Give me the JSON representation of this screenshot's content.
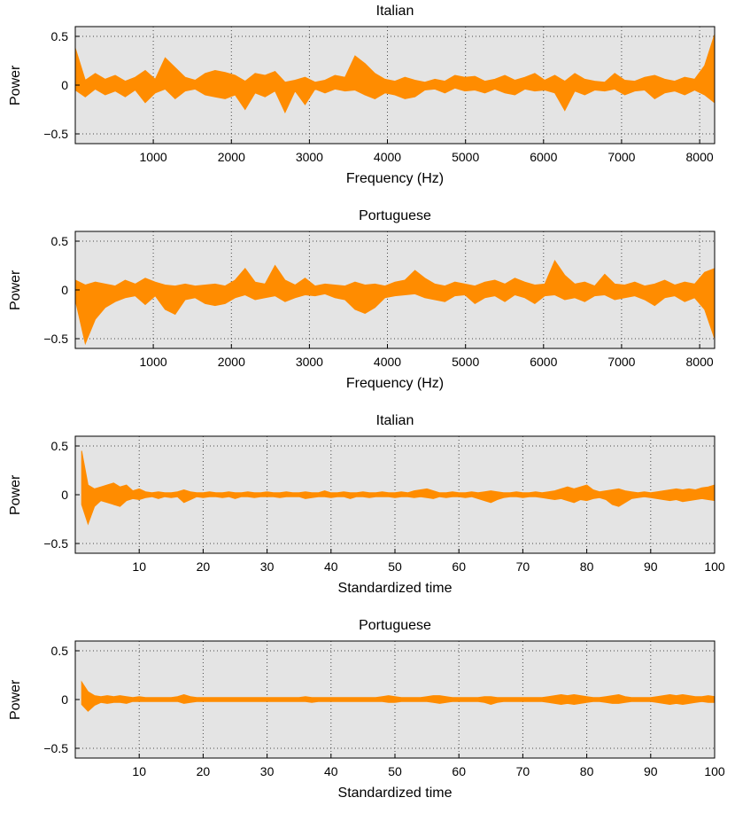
{
  "styles": {
    "plot_bg": "#e4e4e4",
    "area_color": "#ff8c00",
    "grid_color": "#4a4a4a",
    "axis_color": "#000000",
    "page_bg": "#ffffff"
  },
  "chart_data": [
    {
      "type": "area",
      "title": "Italian",
      "xlabel": "Frequency (Hz)",
      "ylabel": "Power",
      "xlim": [
        0,
        8192
      ],
      "ylim": [
        -0.6,
        0.6
      ],
      "xticks": [
        1000,
        2000,
        3000,
        4000,
        5000,
        6000,
        7000,
        8000
      ],
      "yticks": [
        -0.5,
        0,
        0.5
      ],
      "grid": true,
      "legend": "none",
      "x": [
        0,
        128,
        256,
        384,
        512,
        640,
        768,
        896,
        1024,
        1152,
        1280,
        1408,
        1536,
        1664,
        1792,
        1920,
        2048,
        2176,
        2304,
        2432,
        2560,
        2688,
        2816,
        2944,
        3072,
        3200,
        3328,
        3456,
        3584,
        3712,
        3840,
        3968,
        4096,
        4224,
        4352,
        4480,
        4608,
        4736,
        4864,
        4992,
        5120,
        5248,
        5376,
        5504,
        5632,
        5760,
        5888,
        6016,
        6144,
        6272,
        6400,
        6528,
        6656,
        6784,
        6912,
        7040,
        7168,
        7296,
        7424,
        7552,
        7680,
        7808,
        7936,
        8064,
        8192
      ],
      "upper": [
        0.38,
        0.05,
        0.12,
        0.06,
        0.1,
        0.04,
        0.08,
        0.15,
        0.06,
        0.28,
        0.18,
        0.08,
        0.05,
        0.12,
        0.15,
        0.13,
        0.1,
        0.04,
        0.12,
        0.1,
        0.14,
        0.03,
        0.05,
        0.08,
        0.03,
        0.05,
        0.1,
        0.08,
        0.3,
        0.22,
        0.12,
        0.06,
        0.04,
        0.08,
        0.05,
        0.03,
        0.06,
        0.04,
        0.1,
        0.08,
        0.09,
        0.04,
        0.06,
        0.1,
        0.05,
        0.08,
        0.12,
        0.05,
        0.1,
        0.04,
        0.12,
        0.06,
        0.04,
        0.03,
        0.12,
        0.05,
        0.04,
        0.08,
        0.1,
        0.06,
        0.04,
        0.08,
        0.06,
        0.2,
        0.52
      ],
      "lower": [
        -0.05,
        -0.12,
        -0.04,
        -0.1,
        -0.06,
        -0.12,
        -0.05,
        -0.18,
        -0.08,
        -0.04,
        -0.14,
        -0.06,
        -0.04,
        -0.1,
        -0.12,
        -0.14,
        -0.1,
        -0.25,
        -0.08,
        -0.12,
        -0.06,
        -0.28,
        -0.06,
        -0.2,
        -0.04,
        -0.08,
        -0.04,
        -0.06,
        -0.05,
        -0.1,
        -0.14,
        -0.08,
        -0.1,
        -0.14,
        -0.12,
        -0.05,
        -0.04,
        -0.08,
        -0.03,
        -0.06,
        -0.05,
        -0.08,
        -0.04,
        -0.08,
        -0.1,
        -0.04,
        -0.06,
        -0.05,
        -0.08,
        -0.26,
        -0.06,
        -0.1,
        -0.05,
        -0.06,
        -0.04,
        -0.1,
        -0.06,
        -0.05,
        -0.14,
        -0.08,
        -0.06,
        -0.1,
        -0.05,
        -0.1,
        -0.18
      ]
    },
    {
      "type": "area",
      "title": "Portuguese",
      "xlabel": "Frequency (Hz)",
      "ylabel": "Power",
      "xlim": [
        0,
        8192
      ],
      "ylim": [
        -0.6,
        0.6
      ],
      "xticks": [
        1000,
        2000,
        3000,
        4000,
        5000,
        6000,
        7000,
        8000
      ],
      "yticks": [
        -0.5,
        0,
        0.5
      ],
      "grid": true,
      "legend": "none",
      "x": [
        0,
        128,
        256,
        384,
        512,
        640,
        768,
        896,
        1024,
        1152,
        1280,
        1408,
        1536,
        1664,
        1792,
        1920,
        2048,
        2176,
        2304,
        2432,
        2560,
        2688,
        2816,
        2944,
        3072,
        3200,
        3328,
        3456,
        3584,
        3712,
        3840,
        3968,
        4096,
        4224,
        4352,
        4480,
        4608,
        4736,
        4864,
        4992,
        5120,
        5248,
        5376,
        5504,
        5632,
        5760,
        5888,
        6016,
        6144,
        6272,
        6400,
        6528,
        6656,
        6784,
        6912,
        7040,
        7168,
        7296,
        7424,
        7552,
        7680,
        7808,
        7936,
        8064,
        8192
      ],
      "upper": [
        0.1,
        0.05,
        0.08,
        0.06,
        0.04,
        0.1,
        0.06,
        0.12,
        0.08,
        0.05,
        0.04,
        0.06,
        0.04,
        0.05,
        0.06,
        0.04,
        0.1,
        0.22,
        0.08,
        0.06,
        0.25,
        0.1,
        0.05,
        0.12,
        0.04,
        0.06,
        0.05,
        0.04,
        0.08,
        0.05,
        0.06,
        0.04,
        0.08,
        0.1,
        0.2,
        0.12,
        0.06,
        0.04,
        0.08,
        0.06,
        0.04,
        0.08,
        0.1,
        0.06,
        0.12,
        0.08,
        0.05,
        0.06,
        0.3,
        0.15,
        0.06,
        0.08,
        0.04,
        0.16,
        0.06,
        0.05,
        0.08,
        0.04,
        0.06,
        0.1,
        0.05,
        0.08,
        0.06,
        0.18,
        0.22
      ],
      "lower": [
        -0.1,
        -0.55,
        -0.3,
        -0.18,
        -0.12,
        -0.08,
        -0.06,
        -0.15,
        -0.06,
        -0.2,
        -0.25,
        -0.1,
        -0.08,
        -0.14,
        -0.16,
        -0.14,
        -0.08,
        -0.05,
        -0.1,
        -0.08,
        -0.06,
        -0.12,
        -0.08,
        -0.05,
        -0.06,
        -0.04,
        -0.08,
        -0.1,
        -0.2,
        -0.24,
        -0.18,
        -0.08,
        -0.06,
        -0.05,
        -0.04,
        -0.08,
        -0.1,
        -0.12,
        -0.06,
        -0.05,
        -0.14,
        -0.08,
        -0.06,
        -0.12,
        -0.05,
        -0.08,
        -0.14,
        -0.06,
        -0.05,
        -0.1,
        -0.08,
        -0.12,
        -0.06,
        -0.05,
        -0.1,
        -0.08,
        -0.06,
        -0.1,
        -0.16,
        -0.08,
        -0.06,
        -0.12,
        -0.08,
        -0.2,
        -0.5
      ]
    },
    {
      "type": "area",
      "title": "Italian",
      "xlabel": "Standardized time",
      "ylabel": "Power",
      "xlim": [
        0,
        100
      ],
      "ylim": [
        -0.6,
        0.6
      ],
      "xticks": [
        10,
        20,
        30,
        40,
        50,
        60,
        70,
        80,
        90,
        100
      ],
      "yticks": [
        -0.5,
        0,
        0.5
      ],
      "grid": true,
      "legend": "none",
      "x": [
        1,
        2,
        3,
        4,
        5,
        6,
        7,
        8,
        9,
        10,
        11,
        12,
        13,
        14,
        15,
        16,
        17,
        18,
        19,
        20,
        21,
        22,
        23,
        24,
        25,
        26,
        27,
        28,
        29,
        30,
        31,
        32,
        33,
        34,
        35,
        36,
        37,
        38,
        39,
        40,
        41,
        42,
        43,
        44,
        45,
        46,
        47,
        48,
        49,
        50,
        51,
        52,
        53,
        54,
        55,
        56,
        57,
        58,
        59,
        60,
        61,
        62,
        63,
        64,
        65,
        66,
        67,
        68,
        69,
        70,
        71,
        72,
        73,
        74,
        75,
        76,
        77,
        78,
        79,
        80,
        81,
        82,
        83,
        84,
        85,
        86,
        87,
        88,
        89,
        90,
        91,
        92,
        93,
        94,
        95,
        96,
        97,
        98,
        99,
        100
      ],
      "upper": [
        0.45,
        0.1,
        0.06,
        0.08,
        0.1,
        0.12,
        0.08,
        0.1,
        0.04,
        0.06,
        0.03,
        0.02,
        0.03,
        0.02,
        0.02,
        0.03,
        0.05,
        0.03,
        0.02,
        0.02,
        0.03,
        0.02,
        0.02,
        0.03,
        0.02,
        0.02,
        0.03,
        0.02,
        0.02,
        0.03,
        0.02,
        0.02,
        0.03,
        0.02,
        0.02,
        0.03,
        0.02,
        0.02,
        0.04,
        0.02,
        0.02,
        0.03,
        0.02,
        0.02,
        0.03,
        0.02,
        0.02,
        0.03,
        0.02,
        0.02,
        0.03,
        0.02,
        0.04,
        0.05,
        0.06,
        0.04,
        0.02,
        0.02,
        0.03,
        0.02,
        0.02,
        0.03,
        0.02,
        0.03,
        0.04,
        0.03,
        0.02,
        0.02,
        0.03,
        0.02,
        0.02,
        0.03,
        0.02,
        0.03,
        0.04,
        0.06,
        0.08,
        0.06,
        0.08,
        0.1,
        0.05,
        0.03,
        0.04,
        0.05,
        0.06,
        0.04,
        0.03,
        0.02,
        0.03,
        0.02,
        0.03,
        0.04,
        0.05,
        0.06,
        0.05,
        0.06,
        0.05,
        0.07,
        0.08,
        0.1
      ],
      "lower": [
        -0.1,
        -0.3,
        -0.12,
        -0.06,
        -0.08,
        -0.1,
        -0.12,
        -0.06,
        -0.04,
        -0.05,
        -0.03,
        -0.02,
        -0.04,
        -0.02,
        -0.03,
        -0.02,
        -0.08,
        -0.05,
        -0.02,
        -0.03,
        -0.02,
        -0.02,
        -0.03,
        -0.02,
        -0.04,
        -0.02,
        -0.02,
        -0.03,
        -0.02,
        -0.02,
        -0.02,
        -0.03,
        -0.02,
        -0.02,
        -0.02,
        -0.04,
        -0.03,
        -0.02,
        -0.02,
        -0.03,
        -0.02,
        -0.02,
        -0.04,
        -0.02,
        -0.02,
        -0.03,
        -0.02,
        -0.02,
        -0.02,
        -0.03,
        -0.02,
        -0.02,
        -0.03,
        -0.02,
        -0.03,
        -0.04,
        -0.02,
        -0.03,
        -0.02,
        -0.02,
        -0.03,
        -0.02,
        -0.04,
        -0.06,
        -0.08,
        -0.05,
        -0.03,
        -0.02,
        -0.02,
        -0.03,
        -0.02,
        -0.02,
        -0.03,
        -0.04,
        -0.05,
        -0.04,
        -0.06,
        -0.08,
        -0.05,
        -0.06,
        -0.04,
        -0.03,
        -0.05,
        -0.1,
        -0.12,
        -0.08,
        -0.04,
        -0.03,
        -0.02,
        -0.03,
        -0.04,
        -0.05,
        -0.06,
        -0.05,
        -0.07,
        -0.06,
        -0.05,
        -0.04,
        -0.05,
        -0.06
      ]
    },
    {
      "type": "area",
      "title": "Portuguese",
      "xlabel": "Standardized time",
      "ylabel": "Power",
      "xlim": [
        0,
        100
      ],
      "ylim": [
        -0.6,
        0.6
      ],
      "xticks": [
        10,
        20,
        30,
        40,
        50,
        60,
        70,
        80,
        90,
        100
      ],
      "yticks": [
        -0.5,
        0,
        0.5
      ],
      "grid": true,
      "legend": "none",
      "x": [
        1,
        2,
        3,
        4,
        5,
        6,
        7,
        8,
        9,
        10,
        11,
        12,
        13,
        14,
        15,
        16,
        17,
        18,
        19,
        20,
        21,
        22,
        23,
        24,
        25,
        26,
        27,
        28,
        29,
        30,
        31,
        32,
        33,
        34,
        35,
        36,
        37,
        38,
        39,
        40,
        41,
        42,
        43,
        44,
        45,
        46,
        47,
        48,
        49,
        50,
        51,
        52,
        53,
        54,
        55,
        56,
        57,
        58,
        59,
        60,
        61,
        62,
        63,
        64,
        65,
        66,
        67,
        68,
        69,
        70,
        71,
        72,
        73,
        74,
        75,
        76,
        77,
        78,
        79,
        80,
        81,
        82,
        83,
        84,
        85,
        86,
        87,
        88,
        89,
        90,
        91,
        92,
        93,
        94,
        95,
        96,
        97,
        98,
        99,
        100
      ],
      "upper": [
        0.18,
        0.08,
        0.04,
        0.03,
        0.04,
        0.03,
        0.04,
        0.03,
        0.02,
        0.03,
        0.02,
        0.02,
        0.02,
        0.02,
        0.02,
        0.03,
        0.05,
        0.03,
        0.02,
        0.02,
        0.02,
        0.02,
        0.02,
        0.02,
        0.02,
        0.02,
        0.02,
        0.02,
        0.02,
        0.02,
        0.02,
        0.02,
        0.02,
        0.02,
        0.02,
        0.03,
        0.02,
        0.02,
        0.02,
        0.02,
        0.02,
        0.02,
        0.02,
        0.02,
        0.02,
        0.02,
        0.02,
        0.03,
        0.04,
        0.03,
        0.02,
        0.02,
        0.02,
        0.02,
        0.03,
        0.04,
        0.04,
        0.03,
        0.02,
        0.02,
        0.02,
        0.02,
        0.02,
        0.03,
        0.03,
        0.02,
        0.02,
        0.02,
        0.02,
        0.02,
        0.02,
        0.02,
        0.02,
        0.03,
        0.04,
        0.05,
        0.04,
        0.05,
        0.04,
        0.03,
        0.02,
        0.02,
        0.03,
        0.04,
        0.05,
        0.03,
        0.02,
        0.02,
        0.02,
        0.02,
        0.03,
        0.04,
        0.05,
        0.04,
        0.05,
        0.04,
        0.03,
        0.03,
        0.04,
        0.03
      ],
      "lower": [
        -0.05,
        -0.12,
        -0.06,
        -0.03,
        -0.04,
        -0.03,
        -0.03,
        -0.04,
        -0.02,
        -0.02,
        -0.02,
        -0.02,
        -0.02,
        -0.02,
        -0.02,
        -0.02,
        -0.04,
        -0.03,
        -0.02,
        -0.02,
        -0.02,
        -0.02,
        -0.02,
        -0.02,
        -0.02,
        -0.02,
        -0.02,
        -0.02,
        -0.02,
        -0.02,
        -0.02,
        -0.02,
        -0.02,
        -0.02,
        -0.02,
        -0.02,
        -0.03,
        -0.02,
        -0.02,
        -0.02,
        -0.02,
        -0.02,
        -0.02,
        -0.02,
        -0.02,
        -0.02,
        -0.02,
        -0.02,
        -0.03,
        -0.03,
        -0.02,
        -0.02,
        -0.02,
        -0.02,
        -0.02,
        -0.03,
        -0.04,
        -0.03,
        -0.02,
        -0.02,
        -0.02,
        -0.02,
        -0.02,
        -0.03,
        -0.05,
        -0.03,
        -0.02,
        -0.02,
        -0.02,
        -0.02,
        -0.02,
        -0.02,
        -0.02,
        -0.03,
        -0.04,
        -0.05,
        -0.04,
        -0.05,
        -0.04,
        -0.03,
        -0.02,
        -0.02,
        -0.03,
        -0.04,
        -0.04,
        -0.03,
        -0.02,
        -0.02,
        -0.02,
        -0.02,
        -0.03,
        -0.04,
        -0.05,
        -0.04,
        -0.05,
        -0.04,
        -0.03,
        -0.02,
        -0.03,
        -0.03
      ]
    }
  ]
}
